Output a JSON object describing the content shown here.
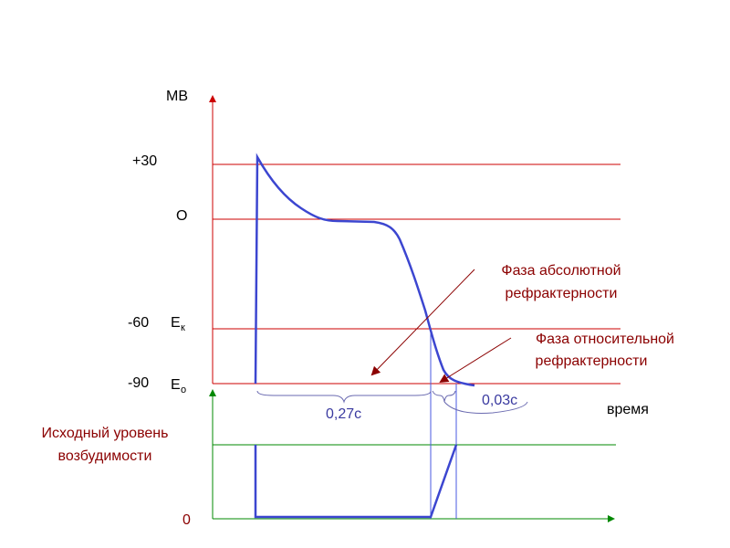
{
  "y_axis": {
    "unit": "МВ",
    "ticks": [
      "+30",
      "O",
      "-60",
      "-90"
    ],
    "levels": [
      {
        "symbol": "E",
        "subscript": "к"
      },
      {
        "symbol": "E",
        "subscript": "о"
      }
    ]
  },
  "x_axis": {
    "label": "время"
  },
  "intervals": [
    "0,27с",
    "0,03с"
  ],
  "annotations": {
    "absolute": [
      "Фаза абсолютной",
      "рефрактерности"
    ],
    "relative": [
      "Фаза относительной",
      "рефрактерности"
    ]
  },
  "excitability": {
    "label": [
      "Исходный уровень",
      "возбудимости"
    ],
    "zero": "0"
  }
}
